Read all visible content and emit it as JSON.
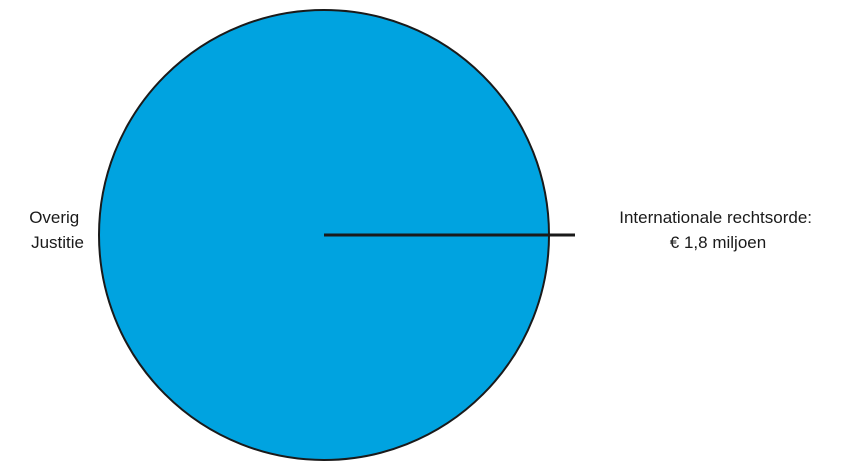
{
  "chart_data": {
    "type": "pie",
    "title": "",
    "slices": [
      {
        "label_lines": [
          "Overig",
          "Justitie"
        ],
        "value": null,
        "color": "#00A3E0"
      },
      {
        "label_lines": [
          "Internationale rechtsorde:",
          "€ 1,8 miljoen"
        ],
        "value": 1.8,
        "unit": "miljoen euro",
        "color": "#00A3E0"
      }
    ],
    "outline_color": "#1a1a1a"
  }
}
